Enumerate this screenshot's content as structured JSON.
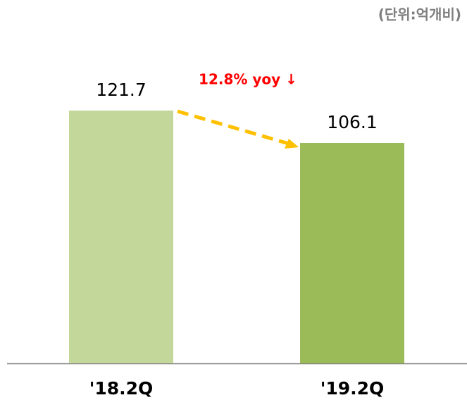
{
  "chart_data": {
    "type": "bar",
    "unit_label": "(단위:억개비)",
    "annotation": "12.8% yoy ↓",
    "categories": [
      "'18.2Q",
      "'19.2Q"
    ],
    "values": [
      121.7,
      106.1
    ],
    "colors": [
      "#c4d79b",
      "#9bbb59"
    ],
    "ylim": [
      0,
      130
    ]
  }
}
